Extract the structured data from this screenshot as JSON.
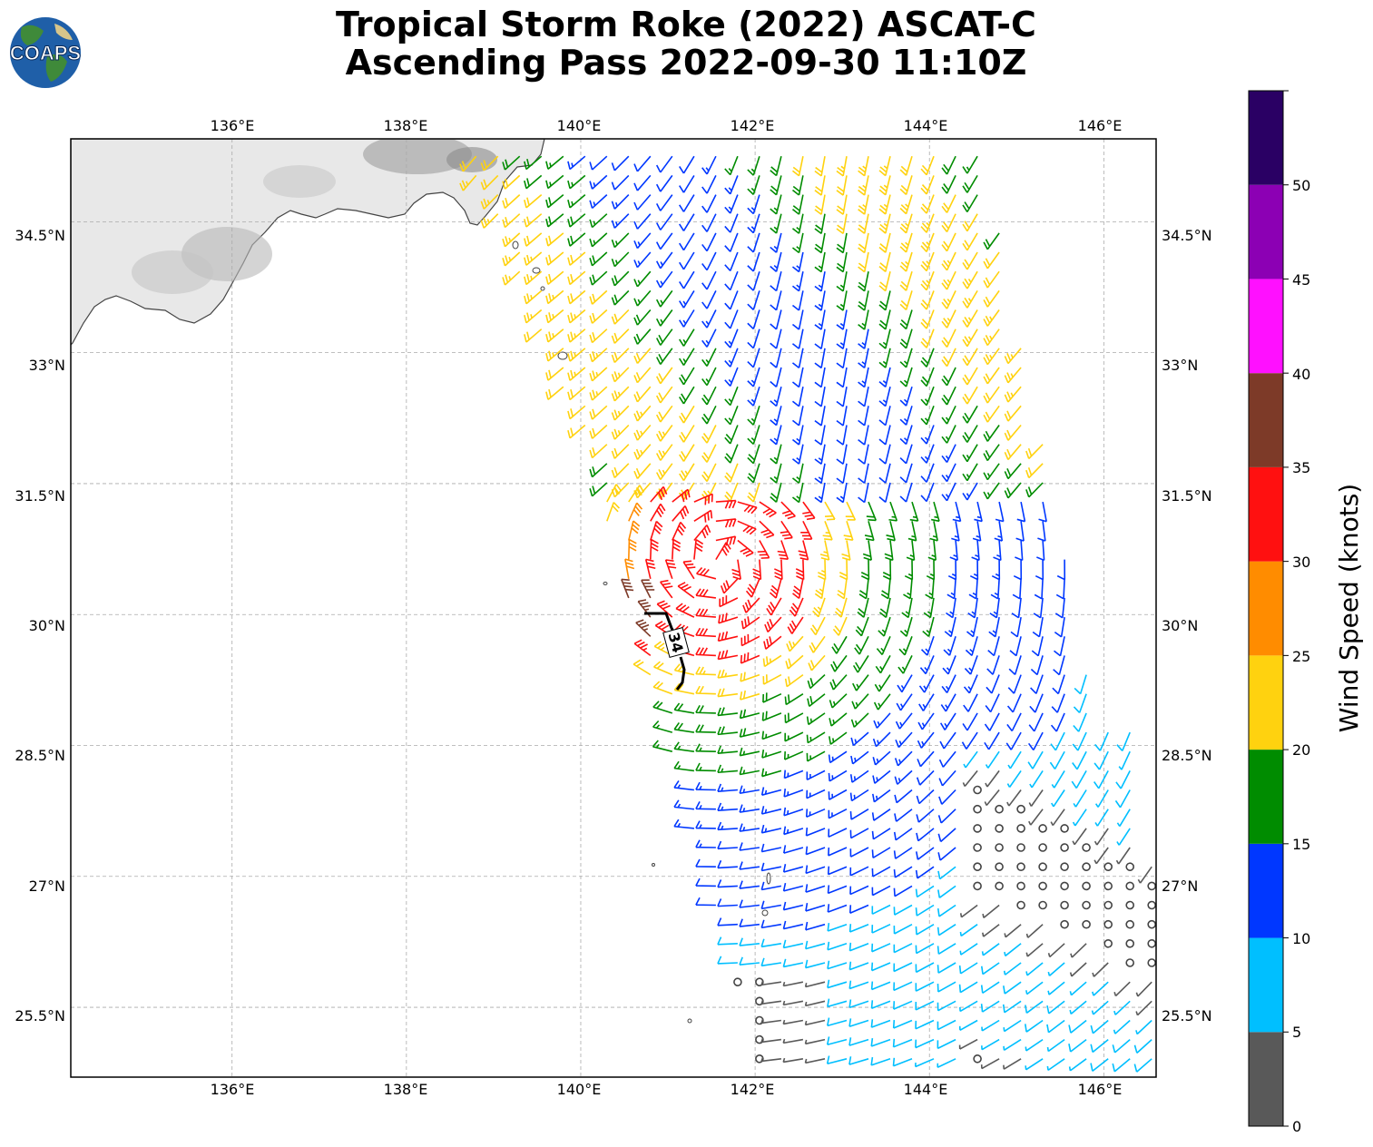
{
  "title": {
    "line1": "Tropical Storm Roke (2022) ASCAT-C",
    "line2": "Ascending Pass 2022-09-30 11:10Z"
  },
  "logo": {
    "text": "COAPS",
    "icon": "earth-globe-icon"
  },
  "map": {
    "lon_range": [
      134.15,
      146.6
    ],
    "lat_range": [
      24.7,
      35.45
    ],
    "lon_ticks": [
      {
        "value": 136,
        "label": "136°E"
      },
      {
        "value": 138,
        "label": "138°E"
      },
      {
        "value": 140,
        "label": "140°E"
      },
      {
        "value": 142,
        "label": "142°E"
      },
      {
        "value": 144,
        "label": "144°E"
      },
      {
        "value": 146,
        "label": "146°E"
      }
    ],
    "lat_ticks": [
      {
        "value": 34.5,
        "label": "34.5°N"
      },
      {
        "value": 33,
        "label": "33°N"
      },
      {
        "value": 31.5,
        "label": "31.5°N"
      },
      {
        "value": 30,
        "label": "30°N"
      },
      {
        "value": 28.5,
        "label": "28.5°N"
      },
      {
        "value": 27,
        "label": "27°N"
      },
      {
        "value": 25.5,
        "label": "25.5°N"
      }
    ],
    "gridlines": true,
    "contour_label": "34"
  },
  "colorbar": {
    "label": "Wind Speed (knots)",
    "ticks": [
      "0",
      "5",
      "10",
      "15",
      "20",
      "25",
      "30",
      "35",
      "40",
      "45",
      "50"
    ],
    "bins": [
      {
        "min": 0,
        "max": 5,
        "color": "#595959"
      },
      {
        "min": 5,
        "max": 10,
        "color": "#00bfff"
      },
      {
        "min": 10,
        "max": 15,
        "color": "#0037ff"
      },
      {
        "min": 15,
        "max": 20,
        "color": "#008c00"
      },
      {
        "min": 20,
        "max": 25,
        "color": "#ffd20f"
      },
      {
        "min": 25,
        "max": 30,
        "color": "#ff8c00"
      },
      {
        "min": 30,
        "max": 35,
        "color": "#ff1010"
      },
      {
        "min": 35,
        "max": 40,
        "color": "#7d3a28"
      },
      {
        "min": 40,
        "max": 45,
        "color": "#ff10ff"
      },
      {
        "min": 45,
        "max": 50,
        "color": "#8c00b4"
      },
      {
        "min": 50,
        "max": 55,
        "color": "#2a0064"
      }
    ]
  },
  "storm": {
    "name": "Roke",
    "approx_center_lon": 141.6,
    "approx_center_lat": 30.6
  }
}
